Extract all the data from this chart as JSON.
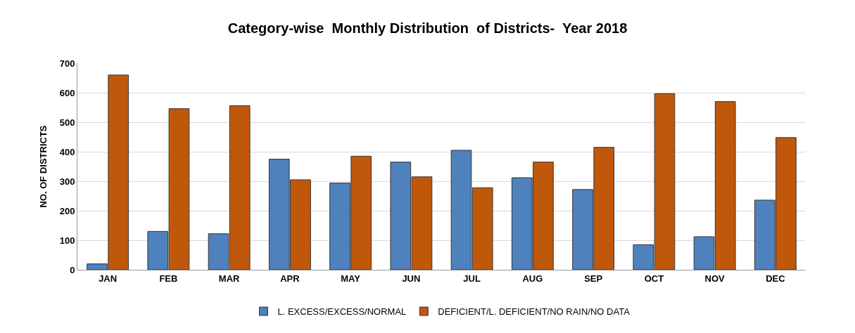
{
  "chart_data": {
    "type": "bar",
    "title": "Category-wise  Monthly Distribution  of Districts-  Year 2018",
    "ylabel": "NO. OF DISTRICTS",
    "categories": [
      "JAN",
      "FEB",
      "MAR",
      "APR",
      "MAY",
      "JUN",
      "JUL",
      "AUG",
      "SEP",
      "OCT",
      "NOV",
      "DEC"
    ],
    "series": [
      {
        "name": "L. EXCESS/EXCESS/NORMAL",
        "color": "#4f81bd",
        "values": [
          20,
          130,
          122,
          375,
          294,
          365,
          405,
          312,
          272,
          85,
          112,
          236
        ]
      },
      {
        "name": "DEFICIENT/L. DEFICIENT/NO RAIN/NO DATA",
        "color": "#c0580c",
        "values": [
          660,
          546,
          556,
          305,
          385,
          315,
          278,
          365,
          415,
          597,
          570,
          448
        ]
      }
    ],
    "ylim": [
      0,
      700
    ],
    "yticks": [
      0,
      100,
      200,
      300,
      400,
      500,
      600,
      700
    ],
    "grid": "y",
    "legend": "bottom"
  }
}
